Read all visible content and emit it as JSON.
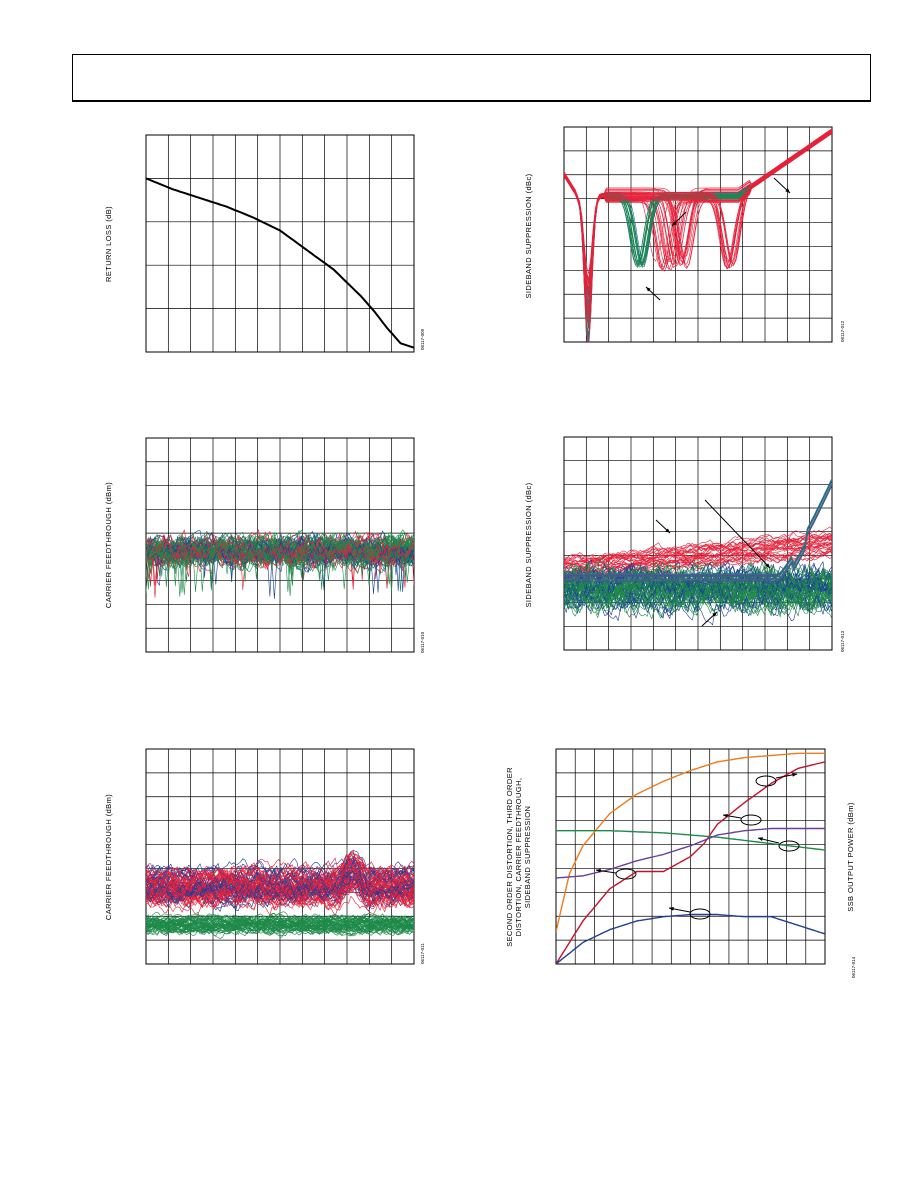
{
  "page": {
    "header_box": ""
  },
  "figures": [
    {
      "ylabel": "RETURN LOSS (dB)",
      "fig_id": "06117-009"
    },
    {
      "ylabel": "SIDEBAND SUPPRESSION (dBc)",
      "fig_id": "06117-012"
    },
    {
      "ylabel": "CARRIER FEEDTHROUGH (dBm)",
      "fig_id": "06117-010"
    },
    {
      "ylabel": "SIDEBAND SUPPRESSION (dBc)",
      "fig_id": "06117-013"
    },
    {
      "ylabel": "CARRIER FEEDTHROUGH (dBm)",
      "fig_id": "06117-011"
    },
    {
      "ylabel": "SECOND ORDER DISTORTION, THIRD ORDER",
      "ylabel2": "DISTORTION, CARRIER FEEDTHROUGH,",
      "ylabel3": "SIDEBAND SUPPRESSION",
      "ylabel_right": "SSB OUTPUT POWER (dBm)",
      "fig_id": "06117-014"
    }
  ],
  "colors": {
    "red": "#e8203a",
    "blue": "#1c3f9a",
    "green": "#1e8a4a",
    "teal": "#1f7a7a",
    "orange": "#f07b1b",
    "crimson": "#c8102e",
    "purple": "#6a3fa0",
    "navy": "#22418f",
    "black": "#000000"
  },
  "chart_data": [
    {
      "type": "line",
      "title": "",
      "xlabel": "",
      "ylabel": "RETURN LOSS (dB)",
      "grid": true,
      "grid_cols": 12,
      "grid_rows": 5,
      "series": [
        {
          "name": "",
          "color": "#000000",
          "x": [
            0,
            0.1,
            0.2,
            0.3,
            0.4,
            0.5,
            0.6,
            0.7,
            0.8,
            0.85,
            0.9,
            0.95,
            1.0
          ],
          "y": [
            0.2,
            0.25,
            0.29,
            0.33,
            0.38,
            0.44,
            0.53,
            0.62,
            0.74,
            0.81,
            0.89,
            0.96,
            0.98
          ]
        }
      ]
    },
    {
      "type": "line",
      "title": "",
      "xlabel": "",
      "ylabel": "SIDEBAND SUPPRESSION (dBc)",
      "grid": true,
      "grid_cols": 12,
      "grid_rows": 9,
      "note": "multiple overlaid traces (red, teal, green)"
    },
    {
      "type": "line",
      "title": "",
      "xlabel": "",
      "ylabel": "CARRIER FEEDTHROUGH (dBm)",
      "grid": true,
      "grid_cols": 12,
      "grid_rows": 9,
      "note": "multiple overlaid traces (red, blue, green)"
    },
    {
      "type": "line",
      "title": "",
      "xlabel": "",
      "ylabel": "SIDEBAND SUPPRESSION (dBc)",
      "grid": true,
      "grid_cols": 12,
      "grid_rows": 9,
      "note": "multiple overlaid traces (red, teal, blue, green)"
    },
    {
      "type": "line",
      "title": "",
      "xlabel": "",
      "ylabel": "CARRIER FEEDTHROUGH (dBm)",
      "grid": true,
      "grid_cols": 12,
      "grid_rows": 9,
      "note": "multiple overlaid traces (red, blue, green)"
    },
    {
      "type": "line",
      "title": "",
      "xlabel": "",
      "ylabel": "SECOND ORDER DISTORTION, THIRD ORDER DISTORTION, CARRIER FEEDTHROUGH, SIDEBAND SUPPRESSION",
      "ylabel_right": "SSB OUTPUT POWER (dBm)",
      "grid": true,
      "grid_cols": 14,
      "grid_rows": 9,
      "series": [
        {
          "name": "",
          "color": "#f07b1b",
          "x": [
            0,
            0.05,
            0.1,
            0.2,
            0.3,
            0.4,
            0.5,
            0.6,
            0.7,
            0.8,
            0.9,
            1.0
          ],
          "y": [
            0.15,
            0.42,
            0.55,
            0.7,
            0.79,
            0.85,
            0.9,
            0.94,
            0.96,
            0.97,
            0.98,
            0.98
          ]
        },
        {
          "name": "",
          "color": "#c8102e",
          "x": [
            0,
            0.1,
            0.2,
            0.3,
            0.4,
            0.5,
            0.55,
            0.6,
            0.7,
            0.8,
            0.9,
            1.0
          ],
          "y": [
            0,
            0.2,
            0.35,
            0.43,
            0.43,
            0.5,
            0.56,
            0.65,
            0.75,
            0.84,
            0.91,
            0.94
          ]
        },
        {
          "name": "",
          "color": "#1e8a4a",
          "x": [
            0,
            0.2,
            0.4,
            0.6,
            0.8,
            1.0
          ],
          "y": [
            0.62,
            0.62,
            0.61,
            0.59,
            0.56,
            0.53
          ]
        },
        {
          "name": "",
          "color": "#6a3fa0",
          "x": [
            0,
            0.1,
            0.2,
            0.3,
            0.4,
            0.5,
            0.6,
            0.7,
            0.8,
            0.9,
            1.0
          ],
          "y": [
            0.4,
            0.41,
            0.44,
            0.48,
            0.51,
            0.55,
            0.6,
            0.62,
            0.63,
            0.63,
            0.63
          ]
        },
        {
          "name": "",
          "color": "#22418f",
          "x": [
            0,
            0.1,
            0.2,
            0.3,
            0.4,
            0.5,
            0.6,
            0.7,
            0.8,
            0.9,
            1.0
          ],
          "y": [
            0,
            0.1,
            0.16,
            0.2,
            0.22,
            0.23,
            0.23,
            0.22,
            0.22,
            0.18,
            0.14
          ]
        }
      ]
    }
  ]
}
